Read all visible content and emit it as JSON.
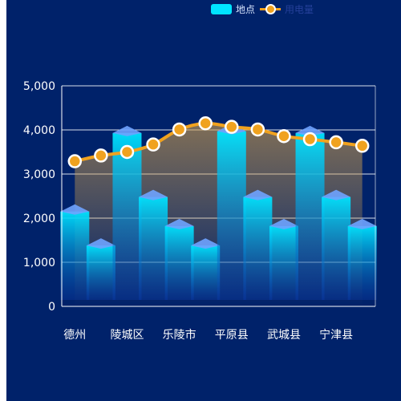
{
  "colors": {
    "background": "#00226a",
    "bar_top": "#00e4ff",
    "bar_bottom": "#0b3db0",
    "line": "#f0a21f",
    "area": "#d6a24a",
    "axis_text": "#ffffff",
    "grid": "#ffffff"
  },
  "legend": {
    "bar_label": "地点",
    "line_label": "用电量"
  },
  "chart_data": {
    "type": "bar",
    "categories": [
      "德州",
      "",
      "陵城区",
      "",
      "乐陵市",
      "",
      "平原县",
      "",
      "武城县",
      "",
      "宁津县",
      ""
    ],
    "x_tick_labels": [
      "德州",
      "陵城区",
      "乐陵市",
      "平原县",
      "武城县",
      "宁津县"
    ],
    "ylim": [
      0,
      5000
    ],
    "yticks": [
      "0",
      "1,000",
      "2,000",
      "3,000",
      "4,000",
      "5,000"
    ],
    "grid": true,
    "legend_position": "top-center",
    "series": [
      {
        "name": "地点",
        "type": "bar",
        "values": [
          2150,
          1380,
          3930,
          2480,
          1820,
          1380,
          3970,
          2480,
          1820,
          3930,
          2480,
          1820
        ]
      },
      {
        "name": "用电量",
        "type": "line",
        "values": [
          3290,
          3420,
          3500,
          3670,
          4010,
          4150,
          4070,
          4010,
          3860,
          3790,
          3720,
          3640
        ]
      }
    ]
  }
}
